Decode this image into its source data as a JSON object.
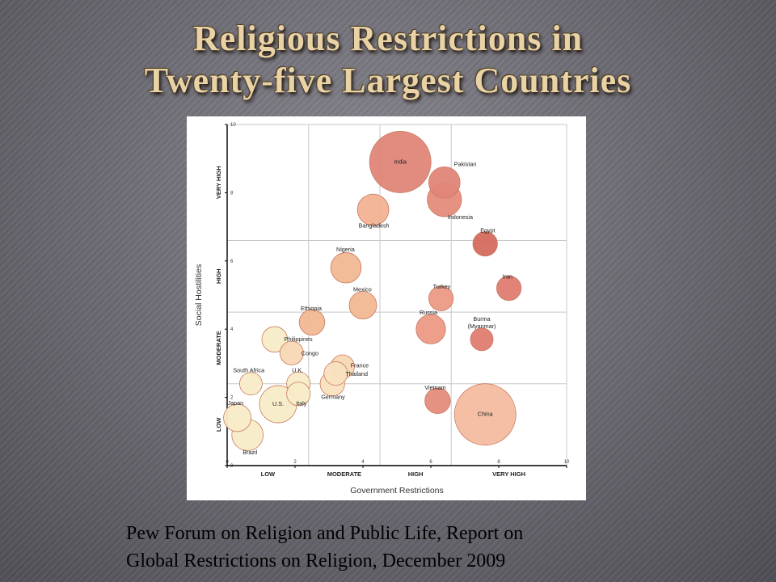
{
  "slide": {
    "title_line1": "Religious Restrictions in",
    "title_line2": "Twenty-five Largest Countries",
    "caption_line1": "Pew Forum on Religion and Public Life, Report on",
    "caption_line2": "Global Restrictions on Religion, December 2009"
  },
  "chart_data": {
    "type": "scatter",
    "xlabel": "Government Restrictions",
    "ylabel": "Social Hostilities",
    "xlim": [
      0,
      10
    ],
    "ylim": [
      0,
      10
    ],
    "x_ticks": [
      "0",
      "2",
      "4",
      "6",
      "8",
      "10"
    ],
    "y_ticks": [
      "0",
      "2",
      "4",
      "6",
      "8",
      "10"
    ],
    "x_categories": [
      "LOW",
      "MODERATE",
      "HIGH",
      "VERY HIGH"
    ],
    "y_categories": [
      "LOW",
      "MODERATE",
      "HIGH",
      "VERY HIGH"
    ],
    "category_boundaries": [
      2.4,
      4.5,
      6.6
    ],
    "grid": true,
    "points": [
      {
        "label": "India",
        "x": 5.1,
        "y": 8.9,
        "size": 1.0,
        "color": "#e08678"
      },
      {
        "label": "Pakistan",
        "x": 6.4,
        "y": 8.3,
        "size": 0.38,
        "color": "#e08678"
      },
      {
        "label": "Indonesia",
        "x": 6.4,
        "y": 7.8,
        "size": 0.44,
        "color": "#e58c7c"
      },
      {
        "label": "Bangladesh",
        "x": 4.3,
        "y": 7.5,
        "size": 0.38,
        "color": "#f2b292"
      },
      {
        "label": "Egypt",
        "x": 7.6,
        "y": 6.5,
        "size": 0.24,
        "color": "#d46a5e"
      },
      {
        "label": "Iran",
        "x": 8.3,
        "y": 5.2,
        "size": 0.24,
        "color": "#e07c70"
      },
      {
        "label": "Nigeria",
        "x": 3.5,
        "y": 5.8,
        "size": 0.36,
        "color": "#f2b894"
      },
      {
        "label": "Mexico",
        "x": 4.0,
        "y": 4.7,
        "size": 0.3,
        "color": "#f2b894"
      },
      {
        "label": "Turkey",
        "x": 6.3,
        "y": 4.9,
        "size": 0.24,
        "color": "#ec9a86"
      },
      {
        "label": "Russia",
        "x": 6.0,
        "y": 4.0,
        "size": 0.34,
        "color": "#ec9a86"
      },
      {
        "label": "Burma (Myanmar)",
        "x": 7.5,
        "y": 3.7,
        "size": 0.2,
        "color": "#e07c70"
      },
      {
        "label": "Ethiopia",
        "x": 2.5,
        "y": 4.2,
        "size": 0.26,
        "color": "#f2b894"
      },
      {
        "label": "Philippines",
        "x": 1.4,
        "y": 3.7,
        "size": 0.26,
        "color": "#f8ecc8"
      },
      {
        "label": "Congo",
        "x": 1.9,
        "y": 3.3,
        "size": 0.22,
        "color": "#f8d8b4"
      },
      {
        "label": "France",
        "x": 3.4,
        "y": 2.9,
        "size": 0.22,
        "color": "#f8d8b4"
      },
      {
        "label": "Thailand",
        "x": 3.2,
        "y": 2.7,
        "size": 0.22,
        "color": "#f8e2c0"
      },
      {
        "label": "Germany",
        "x": 3.1,
        "y": 2.4,
        "size": 0.24,
        "color": "#f8e2c0"
      },
      {
        "label": "South Africa",
        "x": 0.7,
        "y": 2.4,
        "size": 0.2,
        "color": "#f8ecc8"
      },
      {
        "label": "U.K.",
        "x": 2.1,
        "y": 2.4,
        "size": 0.22,
        "color": "#f8ecc8"
      },
      {
        "label": "Italy",
        "x": 2.1,
        "y": 2.1,
        "size": 0.22,
        "color": "#f8ecc8"
      },
      {
        "label": "U.S.",
        "x": 1.5,
        "y": 1.8,
        "size": 0.5,
        "color": "#f8ecc8"
      },
      {
        "label": "Vietnam",
        "x": 6.2,
        "y": 1.9,
        "size": 0.26,
        "color": "#e58c7c"
      },
      {
        "label": "China",
        "x": 7.6,
        "y": 1.5,
        "size": 1.0,
        "color": "#f4bca0"
      },
      {
        "label": "Japan",
        "x": 0.3,
        "y": 1.4,
        "size": 0.3,
        "color": "#f8ecc8"
      },
      {
        "label": "Brazil",
        "x": 0.6,
        "y": 0.9,
        "size": 0.38,
        "color": "#f8ecc8"
      }
    ]
  }
}
